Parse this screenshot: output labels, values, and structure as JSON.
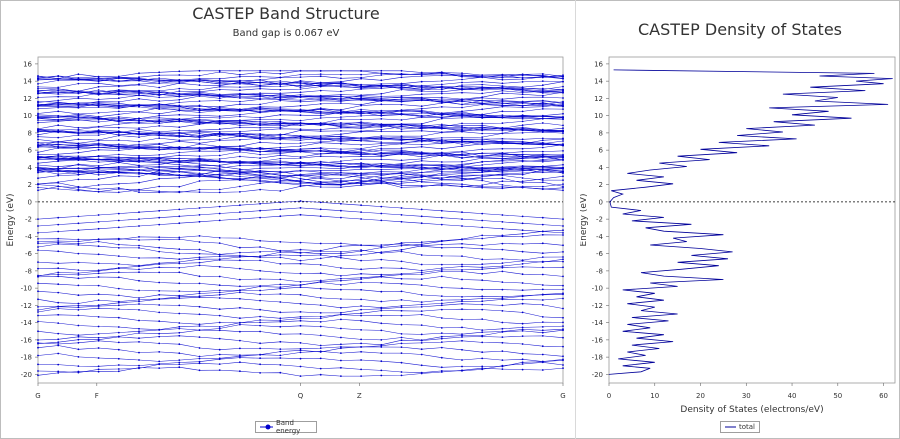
{
  "band_chart": {
    "title": "CASTEP Band Structure",
    "subtitle": "Band gap is 0.067 eV",
    "legend": "Band energy"
  },
  "dos_chart": {
    "title": "CASTEP Density of States",
    "legend": "total"
  },
  "chart_data": [
    {
      "type": "line",
      "title": "CASTEP Band Structure",
      "subtitle": "Band gap is 0.067 eV",
      "xlabel": "",
      "ylabel": "Energy (eV)",
      "ylim": [
        -21,
        16.8
      ],
      "yticks": [
        16,
        14,
        12,
        10,
        8,
        6,
        4,
        2,
        0,
        -2,
        -4,
        -6,
        -8,
        -10,
        -12,
        -14,
        -16,
        -18,
        -20
      ],
      "x_points": [
        {
          "label": "G",
          "pos": 0
        },
        {
          "label": "F",
          "pos": 0.112
        },
        {
          "label": "Q",
          "pos": 0.5
        },
        {
          "label": "Z",
          "pos": 0.612
        },
        {
          "label": "G",
          "pos": 1
        }
      ],
      "fermi_level": 0,
      "band_gap": 0.067,
      "legend": [
        "Band energy"
      ],
      "series_color": "#0000cc",
      "grid": false
    },
    {
      "type": "line",
      "title": "CASTEP Density of States",
      "xlabel": "Density of States (electrons/eV)",
      "ylabel": "Energy (eV)",
      "xlim": [
        0,
        62.5
      ],
      "xticks": [
        0,
        10,
        20,
        30,
        40,
        50,
        60
      ],
      "ylim": [
        -21,
        16.8
      ],
      "yticks": [
        16,
        14,
        12,
        10,
        8,
        6,
        4,
        2,
        0,
        -2,
        -4,
        -6,
        -8,
        -10,
        -12,
        -14,
        -16,
        -18,
        -20
      ],
      "fermi_level": 0,
      "legend": [
        "total"
      ],
      "series_color": "#000099",
      "series": [
        {
          "name": "total",
          "points": [
            [
              0,
              -20.0
            ],
            [
              7,
              -19.7
            ],
            [
              9,
              -19.3
            ],
            [
              3,
              -19.0
            ],
            [
              10,
              -18.6
            ],
            [
              2,
              -18.2
            ],
            [
              8,
              -17.8
            ],
            [
              4,
              -17.4
            ],
            [
              11,
              -17.0
            ],
            [
              5,
              -16.6
            ],
            [
              14,
              -16.2
            ],
            [
              6,
              -15.8
            ],
            [
              12,
              -15.4
            ],
            [
              3,
              -15.0
            ],
            [
              9,
              -14.6
            ],
            [
              4,
              -14.2
            ],
            [
              13,
              -13.8
            ],
            [
              5,
              -13.4
            ],
            [
              15,
              -13.0
            ],
            [
              7,
              -12.6
            ],
            [
              10,
              -12.2
            ],
            [
              4,
              -11.8
            ],
            [
              12,
              -11.4
            ],
            [
              6,
              -11.0
            ],
            [
              10,
              -10.6
            ],
            [
              3,
              -10.2
            ],
            [
              15,
              -9.8
            ],
            [
              9,
              -9.4
            ],
            [
              25,
              -9.0
            ],
            [
              12,
              -8.6
            ],
            [
              7,
              -8.2
            ],
            [
              16,
              -7.8
            ],
            [
              24,
              -7.4
            ],
            [
              15,
              -7.0
            ],
            [
              26,
              -6.6
            ],
            [
              18,
              -6.2
            ],
            [
              27,
              -5.8
            ],
            [
              20,
              -5.4
            ],
            [
              9,
              -5.0
            ],
            [
              17,
              -4.6
            ],
            [
              14,
              -4.2
            ],
            [
              25,
              -3.8
            ],
            [
              12,
              -3.4
            ],
            [
              8,
              -3.0
            ],
            [
              18,
              -2.6
            ],
            [
              5,
              -2.2
            ],
            [
              12,
              -1.8
            ],
            [
              3,
              -1.4
            ],
            [
              7,
              -1.0
            ],
            [
              0.5,
              -0.6
            ],
            [
              0.2,
              0.0
            ],
            [
              1,
              0.5
            ],
            [
              3,
              0.9
            ],
            [
              0.5,
              1.3
            ],
            [
              8,
              1.7
            ],
            [
              14,
              2.1
            ],
            [
              6,
              2.5
            ],
            [
              12,
              2.9
            ],
            [
              4,
              3.3
            ],
            [
              9,
              3.7
            ],
            [
              17,
              4.1
            ],
            [
              11,
              4.5
            ],
            [
              22,
              4.9
            ],
            [
              15,
              5.3
            ],
            [
              28,
              5.7
            ],
            [
              20,
              6.1
            ],
            [
              35,
              6.5
            ],
            [
              24,
              6.9
            ],
            [
              41,
              7.3
            ],
            [
              28,
              7.7
            ],
            [
              38,
              8.1
            ],
            [
              30,
              8.5
            ],
            [
              45,
              8.9
            ],
            [
              36,
              9.3
            ],
            [
              53,
              9.7
            ],
            [
              40,
              10.1
            ],
            [
              48,
              10.5
            ],
            [
              35,
              10.9
            ],
            [
              61,
              11.3
            ],
            [
              45,
              11.7
            ],
            [
              50,
              12.1
            ],
            [
              38,
              12.5
            ],
            [
              56,
              12.9
            ],
            [
              44,
              13.3
            ],
            [
              60,
              13.7
            ],
            [
              54,
              14.0
            ],
            [
              62,
              14.3
            ],
            [
              46,
              14.6
            ],
            [
              58,
              14.9
            ],
            [
              1,
              15.3
            ]
          ]
        }
      ],
      "grid": false
    }
  ]
}
